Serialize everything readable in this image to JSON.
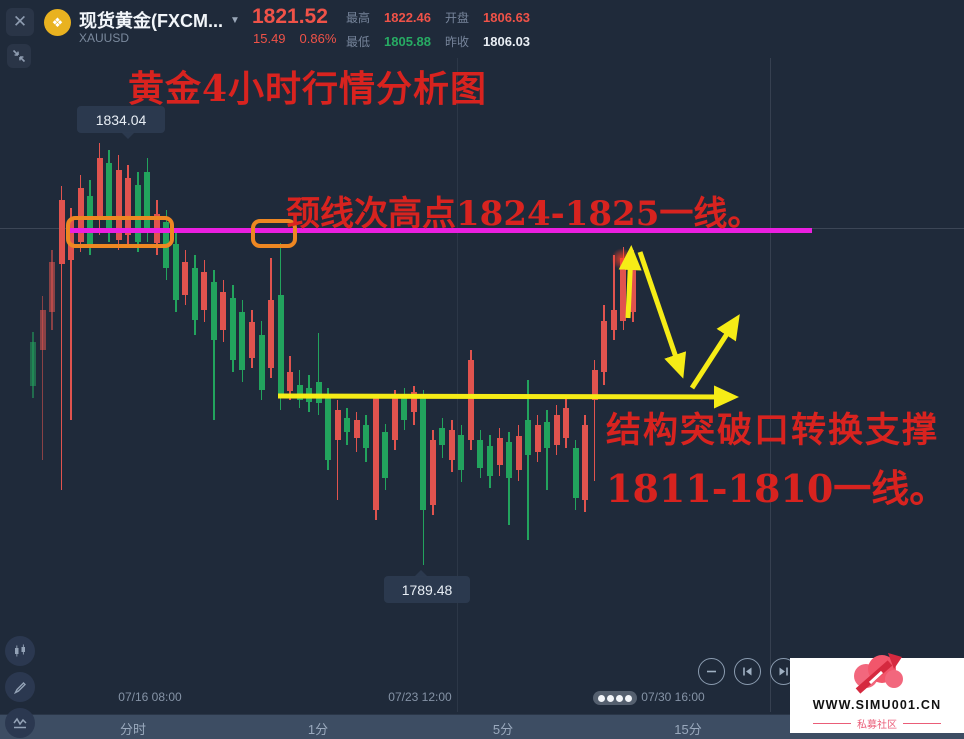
{
  "header": {
    "symbol_title": "现货黄金(FXCM...",
    "caret": "▼",
    "symbol_code": "XAUUSD",
    "price": "1821.52",
    "change": "15.49",
    "change_pct": "0.86%",
    "stats": [
      {
        "label": "最高",
        "value": "1822.46",
        "tone": "up"
      },
      {
        "label": "开盘",
        "value": "1806.63",
        "tone": "up"
      },
      {
        "label": "最低",
        "value": "1805.88",
        "tone": "down"
      },
      {
        "label": "昨收",
        "value": "1806.03",
        "tone": "neu"
      }
    ]
  },
  "icons": {
    "close": "✕",
    "coin": "❖"
  },
  "annotations": {
    "title": "黄金4小时行情分析图",
    "neckline_text": "颈线次高点1824-1825一线。",
    "support_text_line1": "结构突破口转换支撑",
    "support_text_line2": "1811-1810一线。",
    "high_label": "1834.04",
    "low_label": "1789.48"
  },
  "x_axis": {
    "labels": [
      "07/16 08:00",
      "07/23 12:00",
      "07/30 16:00"
    ]
  },
  "tabs": {
    "labels": [
      "分时",
      "1分",
      "5分",
      "15分"
    ]
  },
  "watermark": {
    "site": "WWW.SIMU001.CN",
    "community": "私募社区"
  },
  "colors": {
    "up": "#ef5248",
    "down": "#27ab63",
    "candle_up": "#e0534e",
    "candle_down": "#22a35d",
    "magenta": "#ea1fe0",
    "yellow": "#f6ec16",
    "orange": "#ee8722",
    "annotation_red": "#d8231f",
    "background": "#1f2a3a"
  },
  "chart_data": {
    "type": "candlestick",
    "symbol": "XAUUSD",
    "period": "4小时",
    "ylim": [
      1788,
      1835
    ],
    "price_anchors": {
      "marked_high": 1834.04,
      "marked_low": 1789.48
    },
    "levels": [
      {
        "name": "neckline_resistance",
        "price_range": "1824-1825",
        "color": "magenta"
      },
      {
        "name": "breakout_support",
        "price_range": "1811-1810",
        "color": "yellow"
      }
    ],
    "candle_format": [
      "high",
      "open",
      "close",
      "low",
      "dir(1=up/red, 0=down/green)",
      "dim"
    ],
    "candles": [
      [
        1814.1,
        1813.0,
        1808.4,
        1807.1,
        0,
        1
      ],
      [
        1817.9,
        1812.2,
        1816.4,
        1800.6,
        1,
        1
      ],
      [
        1822.7,
        1816.2,
        1821.5,
        1814.3,
        1,
        1
      ],
      [
        1829.5,
        1821.3,
        1828.0,
        1797.4,
        1
      ],
      [
        1827.2,
        1821.7,
        1825.9,
        1804.8,
        1
      ],
      [
        1830.7,
        1823.6,
        1829.3,
        1822.5,
        1
      ],
      [
        1830.1,
        1828.5,
        1823.3,
        1822.2,
        0
      ],
      [
        1834.0,
        1825.9,
        1832.5,
        1824.3,
        1
      ],
      [
        1833.3,
        1831.9,
        1824.6,
        1823.6,
        0
      ],
      [
        1832.8,
        1823.8,
        1831.2,
        1822.7,
        1
      ],
      [
        1831.7,
        1824.3,
        1830.3,
        1822.9,
        1
      ],
      [
        1831.0,
        1829.6,
        1823.6,
        1822.5,
        0
      ],
      [
        1832.5,
        1831.0,
        1824.9,
        1823.6,
        0
      ],
      [
        1828.0,
        1823.5,
        1826.6,
        1822.2,
        1
      ],
      [
        1827.0,
        1825.7,
        1820.8,
        1819.6,
        0
      ],
      [
        1824.9,
        1823.4,
        1817.5,
        1816.2,
        0
      ],
      [
        1822.7,
        1818.0,
        1821.5,
        1816.9,
        1
      ],
      [
        1822.2,
        1820.8,
        1815.3,
        1813.8,
        0
      ],
      [
        1821.7,
        1816.4,
        1820.4,
        1815.1,
        1
      ],
      [
        1820.6,
        1819.4,
        1813.2,
        1804.8,
        0
      ],
      [
        1819.6,
        1814.3,
        1818.3,
        1813.0,
        1
      ],
      [
        1819.0,
        1817.7,
        1811.1,
        1809.9,
        0
      ],
      [
        1817.5,
        1816.2,
        1810.1,
        1808.8,
        0
      ],
      [
        1816.4,
        1811.3,
        1815.1,
        1810.3,
        1
      ],
      [
        1815.3,
        1813.8,
        1808.0,
        1806.9,
        0
      ],
      [
        1821.9,
        1810.3,
        1817.5,
        1809.2,
        1
      ],
      [
        1823.5,
        1818.0,
        1807.2,
        1805.8,
        0
      ],
      [
        1811.6,
        1807.8,
        1809.9,
        1806.9,
        1
      ],
      [
        1810.1,
        1808.5,
        1806.9,
        1806.1,
        0
      ],
      [
        1809.5,
        1808.2,
        1806.7,
        1805.6,
        0
      ],
      [
        1814.0,
        1808.8,
        1806.6,
        1805.3,
        0
      ],
      [
        1808.2,
        1807.4,
        1800.6,
        1799.5,
        0
      ],
      [
        1806.9,
        1802.7,
        1805.8,
        1796.3,
        1
      ],
      [
        1806.1,
        1805.0,
        1803.5,
        1802.1,
        0
      ],
      [
        1805.6,
        1802.9,
        1804.8,
        1801.4,
        1
      ],
      [
        1805.3,
        1804.3,
        1801.8,
        1800.4,
        0
      ],
      [
        1807.4,
        1795.3,
        1807.1,
        1794.2,
        1
      ],
      [
        1804.4,
        1803.5,
        1798.7,
        1797.4,
        0
      ],
      [
        1808.0,
        1802.7,
        1807.1,
        1801.6,
        1
      ],
      [
        1808.2,
        1807.3,
        1804.8,
        1803.7,
        0
      ],
      [
        1808.4,
        1805.6,
        1807.8,
        1804.3,
        1
      ],
      [
        1808.0,
        1807.1,
        1795.3,
        1789.5,
        0
      ],
      [
        1803.7,
        1795.8,
        1802.7,
        1794.8,
        1
      ],
      [
        1805.0,
        1803.9,
        1802.1,
        1800.8,
        0
      ],
      [
        1804.8,
        1800.6,
        1803.7,
        1799.3,
        1
      ],
      [
        1804.3,
        1803.2,
        1799.5,
        1798.2,
        0
      ],
      [
        1812.2,
        1802.7,
        1811.1,
        1801.6,
        1
      ],
      [
        1803.7,
        1802.7,
        1799.7,
        1798.7,
        0
      ],
      [
        1803.2,
        1802.1,
        1798.9,
        1797.6,
        0
      ],
      [
        1803.9,
        1800.0,
        1802.9,
        1798.9,
        1
      ],
      [
        1803.5,
        1802.5,
        1798.7,
        1793.7,
        0
      ],
      [
        1804.3,
        1799.5,
        1803.1,
        1798.4,
        1
      ],
      [
        1809.0,
        1804.8,
        1801.1,
        1792.1,
        0
      ],
      [
        1805.3,
        1801.4,
        1804.3,
        1800.4,
        1
      ],
      [
        1805.8,
        1804.6,
        1801.8,
        1797.4,
        0
      ],
      [
        1806.4,
        1802.1,
        1805.3,
        1801.1,
        1
      ],
      [
        1807.1,
        1802.9,
        1806.1,
        1801.8,
        1
      ],
      [
        1802.7,
        1801.8,
        1796.5,
        1795.3,
        0
      ],
      [
        1805.3,
        1796.3,
        1804.3,
        1795.1,
        1
      ],
      [
        1811.1,
        1806.9,
        1810.1,
        1798.4,
        1
      ],
      [
        1816.9,
        1809.9,
        1815.3,
        1808.5,
        1
      ],
      [
        1822.2,
        1814.3,
        1816.4,
        1813.2,
        1
      ],
      [
        1823.1,
        1815.3,
        1821.9,
        1814.3,
        1
      ],
      [
        1822.7,
        1816.2,
        1821.5,
        1815.1,
        1
      ]
    ]
  }
}
